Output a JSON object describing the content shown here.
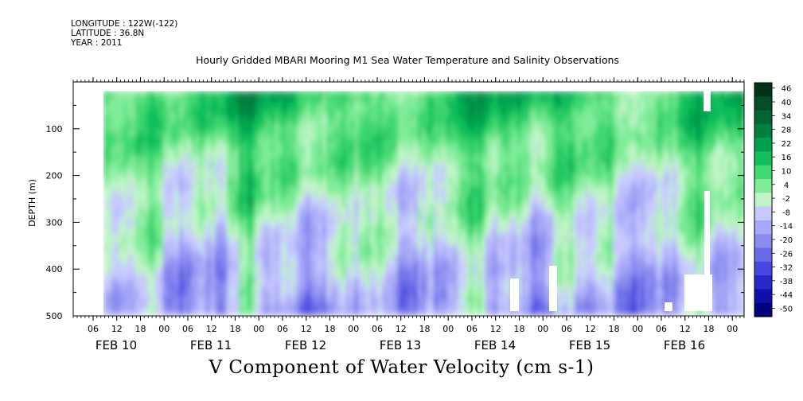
{
  "header": {
    "longitude": "LONGITUDE : 122W(-122)",
    "latitude": "LATITUDE : 36.8N",
    "year": "YEAR : 2011"
  },
  "chart_data": {
    "type": "heatmap",
    "title": "Hourly Gridded MBARI Mooring M1 Sea Water Temperature and Salinity Observations",
    "subtitle": "V Component of Water Velocity (cm s-1)",
    "ylabel": "DEPTH (m)",
    "ylim": [
      500,
      0
    ],
    "y_ticks": [
      "100",
      "200",
      "300",
      "400",
      "500"
    ],
    "x_hour_ticks": [
      "06",
      "12",
      "18",
      "00",
      "06",
      "12",
      "18",
      "00",
      "06",
      "12",
      "18",
      "00",
      "06",
      "12",
      "18",
      "00",
      "06",
      "12",
      "18",
      "00",
      "06",
      "12",
      "18",
      "00",
      "06",
      "12",
      "18",
      "00"
    ],
    "x_date_labels": [
      "FEB 10",
      "FEB 11",
      "FEB 12",
      "FEB 13",
      "FEB 14",
      "FEB 15",
      "FEB 16"
    ],
    "colorbar": {
      "levels": [
        "46",
        "40",
        "34",
        "28",
        "22",
        "16",
        "10",
        "4",
        "-2",
        "-8",
        "-14",
        "-20",
        "-26",
        "-32",
        "-38",
        "-44",
        "-50"
      ],
      "colors": [
        "#00331a",
        "#004d26",
        "#006633",
        "#008040",
        "#00a04d",
        "#10c05a",
        "#40d870",
        "#80ec98",
        "#c0f5c8",
        "#c8c8ff",
        "#a8a8f8",
        "#8c8cf0",
        "#6a6ae8",
        "#4848e0",
        "#2828c8",
        "#1010a8",
        "#000080"
      ]
    },
    "data_summary": {
      "time_range": [
        "FEB 10",
        "FEB 16"
      ],
      "depth_range_m": [
        20,
        490
      ],
      "upper_layer": "positive (green), 10 to 22",
      "lower_layer": "negative (blue), -8 to -20"
    }
  }
}
